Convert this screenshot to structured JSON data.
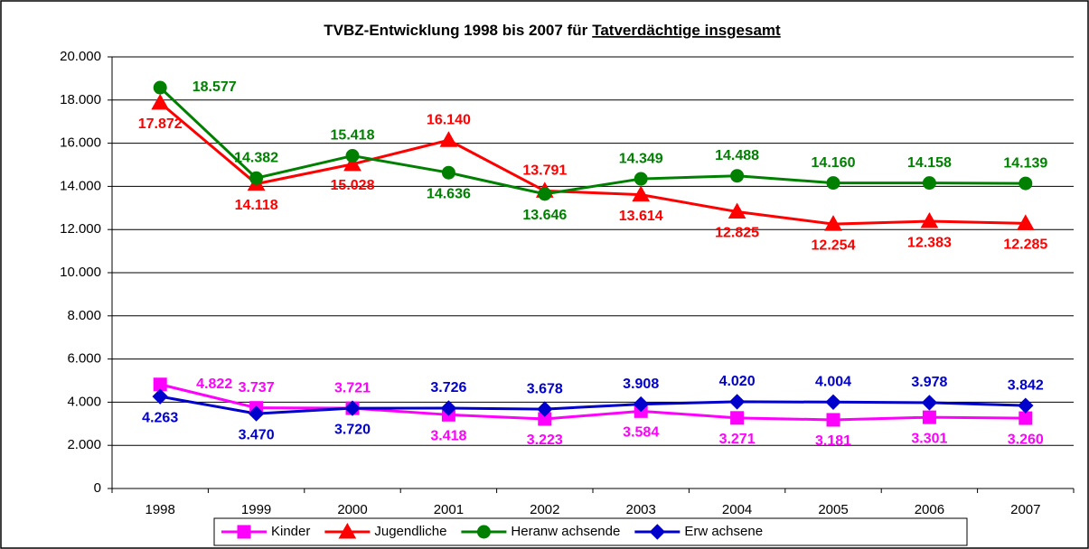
{
  "chart_data": {
    "type": "line",
    "title": [
      "TVBZ-Entwicklung 1998 bis 2007 für",
      "Tatverdächtige insgesamt"
    ],
    "categories": [
      "1998",
      "1999",
      "2000",
      "2001",
      "2002",
      "2003",
      "2004",
      "2005",
      "2006",
      "2007"
    ],
    "ylim": [
      0,
      20000
    ],
    "yticks": [
      0,
      {
        "value": 2000,
        "label": "2.000"
      },
      {
        "value": 4000,
        "label": "4.000"
      },
      {
        "value": 6000,
        "label": "6.000"
      },
      {
        "value": 8000,
        "label": "8.000"
      },
      {
        "value": 10000,
        "label": "10.000"
      },
      {
        "value": 12000,
        "label": "12.000"
      },
      {
        "value": 14000,
        "label": "14.000"
      },
      {
        "value": 16000,
        "label": "16.000"
      },
      {
        "value": 18000,
        "label": "18.000"
      },
      {
        "value": 20000,
        "label": "20.000"
      }
    ],
    "grid": true,
    "legend": "bottom",
    "series": [
      {
        "name": "Kinder",
        "color": "#ff00ff",
        "marker": "square",
        "values": [
          4822,
          3737,
          3721,
          3418,
          3223,
          3584,
          3271,
          3181,
          3301,
          3260
        ],
        "value_labels": [
          "4.822",
          "3.737",
          "3.721",
          "3.418",
          "3.223",
          "3.584",
          "3.271",
          "3.181",
          "3.301",
          "3.260"
        ]
      },
      {
        "name": "Jugendliche",
        "color": "#ff0000",
        "marker": "triangle",
        "values": [
          17872,
          14118,
          15028,
          16140,
          13791,
          13614,
          12825,
          12254,
          12383,
          12285
        ],
        "value_labels": [
          "17.872",
          "14.118",
          "15.028",
          "16.140",
          "13.791",
          "13.614",
          "12.825",
          "12.254",
          "12.383",
          "12.285"
        ]
      },
      {
        "name": "Heranw achsende",
        "color": "#008000",
        "marker": "circle",
        "values": [
          18577,
          14382,
          15418,
          14636,
          13646,
          14349,
          14488,
          14160,
          14158,
          14139
        ],
        "value_labels": [
          "18.577",
          "14.382",
          "15.418",
          "14.636",
          "13.646",
          "14.349",
          "14.488",
          "14.160",
          "14.158",
          "14.139"
        ]
      },
      {
        "name": "Erw achsene",
        "color": "#0000cc",
        "marker": "diamond",
        "values": [
          4263,
          3470,
          3720,
          3726,
          3678,
          3908,
          4020,
          4004,
          3978,
          3842
        ],
        "value_labels": [
          "4.263",
          "3.470",
          "3.720",
          "3.726",
          "3.678",
          "3.908",
          "4.020",
          "4.004",
          "3.978",
          "3.842"
        ]
      }
    ]
  }
}
